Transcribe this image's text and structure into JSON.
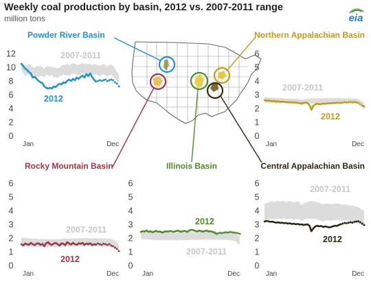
{
  "header": {
    "title": "Weekly coal production by basin, 2012 vs. 2007-2011  range",
    "subtitle": "million tons",
    "logo_text": "eia"
  },
  "colors": {
    "powder_river": "#1a94cf",
    "northern_appalachian": "#c89a13",
    "rocky_mountain": "#a63247",
    "illinois": "#4f8a2a",
    "central_appalachian": "#2e2812",
    "range_fill": "#dcdcdc",
    "range_label": "#c8c8c8"
  },
  "chart_data": [
    {
      "type": "area",
      "title": "Powder River Basin",
      "color": "#1a94cf",
      "yticks": [
        "0",
        "2",
        "4",
        "6",
        "8",
        "10",
        "12"
      ],
      "ylim": [
        0,
        12
      ],
      "xticks": [
        "Jan",
        "Dec"
      ],
      "range_label": "2007-2011",
      "year_label": "2012",
      "range_low": [
        9.6,
        9.2,
        8.7,
        8.9,
        9.0,
        8.6,
        8.3,
        8.4,
        8.6,
        8.5,
        8.8,
        8.7,
        8.5,
        8.9,
        8.8,
        8.7,
        8.9,
        8.5,
        8.6,
        8.4,
        8.8,
        8.7,
        9.0,
        8.8,
        8.9,
        8.7,
        9.0,
        9.1,
        9.0,
        8.9,
        8.8,
        8.9,
        9.2,
        8.9,
        9.1,
        8.8,
        9.0,
        8.8,
        8.9,
        9.0,
        8.8,
        8.7,
        8.9,
        9.0,
        8.8,
        8.6,
        8.8,
        8.9,
        8.7,
        8.3,
        8.0,
        7.8
      ],
      "range_high": [
        10.8,
        10.4,
        10.2,
        10.3,
        10.5,
        10.3,
        10.0,
        9.9,
        10.2,
        10.1,
        10.3,
        10.0,
        9.8,
        10.1,
        10.2,
        10.0,
        10.1,
        9.9,
        10.0,
        9.8,
        10.0,
        10.2,
        10.4,
        10.3,
        10.5,
        10.3,
        10.4,
        10.6,
        10.5,
        10.4,
        10.3,
        10.5,
        10.6,
        10.4,
        10.6,
        10.4,
        10.5,
        10.3,
        10.5,
        10.4,
        10.3,
        10.2,
        10.3,
        10.5,
        10.3,
        10.1,
        10.3,
        10.4,
        10.2,
        9.8,
        9.3,
        9.0
      ],
      "values_2012": [
        10.5,
        10.2,
        9.8,
        9.6,
        9.3,
        9.1,
        8.5,
        8.6,
        8.3,
        8.0,
        7.8,
        7.7,
        7.2,
        7.0,
        6.9,
        7.0,
        6.9,
        7.2,
        7.1,
        7.4,
        7.6,
        7.5,
        7.8,
        7.7,
        8.0,
        8.2,
        8.0,
        8.3,
        8.1,
        8.5,
        8.3,
        8.6,
        8.8,
        8.5,
        9.0,
        8.7,
        9.1,
        8.6,
        8.2,
        7.9
      ],
      "projected_2012": [
        7.9,
        8.0,
        8.1,
        8.0,
        8.1,
        8.2,
        8.0,
        8.1,
        8.2,
        8.1,
        7.8,
        7.6,
        7.2
      ]
    },
    {
      "type": "area",
      "title": "Northern Appalachian Basin",
      "color": "#c89a13",
      "yticks": [
        "0",
        "1",
        "2",
        "3",
        "4",
        "5",
        "6"
      ],
      "ylim": [
        0,
        6
      ],
      "xticks": [
        "Jan",
        "Dec"
      ],
      "range_label": "2007-2011",
      "year_label": "2012",
      "range_low": [
        2.45,
        2.45,
        2.4,
        2.42,
        2.4,
        2.38,
        2.36,
        2.38,
        2.4,
        2.38,
        2.36,
        2.38,
        2.35,
        2.36,
        2.34,
        2.36,
        2.35,
        2.34,
        2.36,
        2.2,
        2.3,
        2.34,
        2.35,
        2.36,
        2.35,
        2.36,
        2.38,
        2.37,
        2.36,
        2.38,
        2.36,
        2.38,
        2.4,
        2.38,
        2.4,
        2.38,
        2.39,
        2.38,
        2.4,
        2.38,
        2.37,
        2.38,
        2.36,
        2.38,
        2.36,
        2.34,
        2.35,
        2.33,
        2.3,
        2.2,
        2.05,
        1.95
      ],
      "range_high": [
        2.8,
        2.85,
        2.78,
        2.8,
        2.76,
        2.78,
        2.74,
        2.76,
        2.75,
        2.74,
        2.72,
        2.74,
        2.7,
        2.72,
        2.7,
        2.71,
        2.7,
        2.68,
        2.7,
        2.62,
        2.66,
        2.68,
        2.7,
        2.72,
        2.71,
        2.72,
        2.74,
        2.73,
        2.72,
        2.74,
        2.73,
        2.74,
        2.76,
        2.74,
        2.76,
        2.74,
        2.75,
        2.74,
        2.76,
        2.74,
        2.73,
        2.74,
        2.72,
        2.74,
        2.72,
        2.7,
        2.72,
        2.7,
        2.66,
        2.58,
        2.5,
        2.45
      ],
      "values_2012": [
        2.6,
        2.55,
        2.58,
        2.55,
        2.52,
        2.55,
        2.5,
        2.52,
        2.48,
        2.5,
        2.48,
        2.45,
        2.46,
        2.44,
        2.45,
        2.42,
        2.44,
        2.4,
        2.38,
        2.35,
        2.4,
        2.42,
        2.4,
        2.25,
        1.9,
        2.2,
        2.3,
        2.35,
        2.3,
        2.32,
        2.35,
        2.33,
        2.36,
        2.38,
        2.36,
        2.4,
        2.38,
        2.42,
        2.4,
        2.4
      ],
      "projected_2012": [
        2.4,
        2.42,
        2.45,
        2.43,
        2.45,
        2.47,
        2.45,
        2.47,
        2.45,
        2.4,
        2.3,
        2.2,
        2.15
      ]
    },
    {
      "type": "area",
      "title": "Rocky Mountain Basin",
      "color": "#a63247",
      "yticks": [
        "0",
        "1",
        "2",
        "3",
        "4",
        "5",
        "6"
      ],
      "ylim": [
        0,
        6
      ],
      "xticks": [
        "Jan",
        "Dec"
      ],
      "range_label": "2007-2011",
      "year_label": "2012",
      "range_low": [
        1.5,
        1.45,
        1.42,
        1.4,
        1.42,
        1.38,
        1.36,
        1.38,
        1.4,
        1.38,
        1.36,
        1.38,
        1.35,
        1.36,
        1.34,
        1.36,
        1.38,
        1.36,
        1.35,
        1.36,
        1.38,
        1.4,
        1.38,
        1.4,
        1.42,
        1.4,
        1.42,
        1.43,
        1.42,
        1.44,
        1.42,
        1.43,
        1.45,
        1.44,
        1.45,
        1.43,
        1.44,
        1.43,
        1.45,
        1.44,
        1.42,
        1.43,
        1.42,
        1.44,
        1.42,
        1.4,
        1.42,
        1.4,
        1.36,
        1.28,
        1.18,
        1.1
      ],
      "range_high": [
        2.0,
        2.05,
        1.98,
        2.0,
        1.96,
        1.98,
        1.94,
        1.96,
        1.95,
        1.94,
        1.92,
        1.94,
        1.9,
        1.92,
        1.9,
        1.91,
        1.92,
        1.9,
        1.92,
        1.9,
        1.92,
        1.94,
        1.95,
        1.96,
        1.95,
        1.96,
        1.98,
        1.97,
        1.96,
        1.98,
        1.97,
        1.98,
        2.0,
        1.98,
        2.0,
        1.98,
        1.99,
        1.98,
        2.0,
        1.98,
        1.97,
        1.98,
        1.96,
        1.98,
        1.96,
        1.94,
        1.96,
        1.94,
        1.88,
        1.78,
        1.65,
        1.55
      ],
      "values_2012": [
        1.55,
        1.45,
        1.6,
        1.55,
        1.5,
        1.65,
        1.55,
        1.48,
        1.6,
        1.62,
        1.5,
        1.58,
        1.4,
        1.62,
        1.7,
        1.55,
        1.5,
        1.6,
        1.65,
        1.55,
        1.45,
        1.62,
        1.58,
        1.48,
        1.7,
        1.6,
        1.52,
        1.65,
        1.55,
        1.5,
        1.62,
        1.58,
        1.65,
        1.5,
        1.6,
        1.55,
        1.62,
        1.48,
        1.55,
        1.52
      ],
      "projected_2012": [
        1.52,
        1.6,
        1.55,
        1.5,
        1.58,
        1.55,
        1.5,
        1.55,
        1.45,
        1.4,
        1.3,
        1.2,
        1.05
      ]
    },
    {
      "type": "area",
      "title": "Illinois Basin",
      "color": "#4f8a2a",
      "yticks": [
        "0",
        "1",
        "2",
        "3",
        "4",
        "5",
        "6"
      ],
      "ylim": [
        0,
        6
      ],
      "xticks": [
        "Jan",
        "Dec"
      ],
      "range_label": "2007-2011",
      "year_label": "2012",
      "range_low": [
        1.95,
        1.9,
        1.92,
        1.88,
        1.9,
        1.86,
        1.88,
        1.85,
        1.86,
        1.84,
        1.86,
        1.85,
        1.84,
        1.85,
        1.83,
        1.84,
        1.85,
        1.84,
        1.82,
        1.84,
        1.86,
        1.85,
        1.84,
        1.86,
        1.85,
        1.86,
        1.88,
        1.87,
        1.86,
        1.88,
        1.87,
        1.88,
        1.9,
        1.88,
        1.9,
        1.88,
        1.89,
        1.88,
        1.9,
        1.88,
        1.87,
        1.88,
        1.86,
        1.88,
        1.86,
        1.84,
        1.86,
        1.84,
        1.8,
        1.72,
        1.6,
        1.5
      ],
      "range_high": [
        2.55,
        2.5,
        2.48,
        2.45,
        2.47,
        2.44,
        2.45,
        2.43,
        2.44,
        2.42,
        2.44,
        2.43,
        2.42,
        2.43,
        2.41,
        2.42,
        2.43,
        2.42,
        2.4,
        2.42,
        2.44,
        2.43,
        2.42,
        2.44,
        2.43,
        2.44,
        2.46,
        2.45,
        2.44,
        2.46,
        2.45,
        2.46,
        2.48,
        2.46,
        2.48,
        2.46,
        2.47,
        2.46,
        2.48,
        2.46,
        2.45,
        2.46,
        2.44,
        2.46,
        2.44,
        2.42,
        2.44,
        2.42,
        2.38,
        2.3,
        2.2,
        2.1
      ],
      "values_2012": [
        2.45,
        2.5,
        2.48,
        2.55,
        2.45,
        2.5,
        2.42,
        2.48,
        2.52,
        2.45,
        2.48,
        2.4,
        2.45,
        2.5,
        2.46,
        2.52,
        2.48,
        2.45,
        2.5,
        2.55,
        2.48,
        2.46,
        2.52,
        2.5,
        2.45,
        2.55,
        2.6,
        2.58,
        2.52,
        2.48,
        2.55,
        2.5,
        2.46,
        2.52,
        2.55,
        2.48,
        2.5,
        2.45,
        2.4,
        2.3
      ],
      "projected_2012": [
        2.3,
        2.35,
        2.38,
        2.35,
        2.4,
        2.42,
        2.4,
        2.45,
        2.42,
        2.4,
        2.38,
        2.35,
        2.3
      ]
    },
    {
      "type": "area",
      "title": "Central Appalachian Basin",
      "color": "#2e2812",
      "yticks": [
        "0",
        "1",
        "2",
        "3",
        "4",
        "5",
        "6"
      ],
      "ylim": [
        0,
        6
      ],
      "xticks": [
        "Jan",
        "Dec"
      ],
      "range_label": "2007-2011",
      "year_label": "2012",
      "range_low": [
        3.3,
        3.35,
        3.32,
        3.38,
        3.4,
        3.35,
        3.38,
        3.42,
        3.4,
        3.38,
        3.42,
        3.4,
        3.38,
        3.42,
        3.4,
        3.36,
        3.38,
        3.4,
        3.35,
        3.2,
        3.3,
        3.36,
        3.38,
        3.4,
        3.42,
        3.4,
        3.38,
        3.36,
        3.3,
        3.25,
        3.2,
        3.25,
        3.28,
        3.3,
        3.25,
        3.3,
        3.28,
        3.32,
        3.3,
        3.28,
        3.25,
        3.3,
        3.28,
        3.25,
        3.22,
        3.2,
        3.18,
        3.15,
        3.1,
        3.0,
        2.9,
        2.85
      ],
      "range_high": [
        4.5,
        4.55,
        4.6,
        4.65,
        4.7,
        4.62,
        4.68,
        4.72,
        4.65,
        4.7,
        4.68,
        4.62,
        4.66,
        4.7,
        4.65,
        4.6,
        4.64,
        4.68,
        4.6,
        4.4,
        4.52,
        4.6,
        4.62,
        4.66,
        4.7,
        4.68,
        4.64,
        4.62,
        4.58,
        4.5,
        4.46,
        4.48,
        4.52,
        4.5,
        4.46,
        4.5,
        4.48,
        4.52,
        4.5,
        4.46,
        4.42,
        4.46,
        4.44,
        4.4,
        4.38,
        4.36,
        4.34,
        4.3,
        4.25,
        4.15,
        4.05,
        4.0
      ],
      "values_2012": [
        3.2,
        3.25,
        3.22,
        3.18,
        3.2,
        3.15,
        3.12,
        3.15,
        3.1,
        3.12,
        3.08,
        3.1,
        3.05,
        3.08,
        3.02,
        3.05,
        3.0,
        3.03,
        2.98,
        3.0,
        2.95,
        2.98,
        3.0,
        2.9,
        2.5,
        2.7,
        2.85,
        2.9,
        2.85,
        2.88,
        2.8,
        2.85,
        2.82,
        2.78,
        2.8,
        2.85,
        2.9,
        2.88,
        2.95,
        3.0
      ],
      "projected_2012": [
        3.0,
        3.05,
        3.1,
        3.08,
        3.12,
        3.15,
        3.12,
        3.18,
        3.2,
        3.22,
        3.15,
        3.05,
        2.95
      ]
    }
  ]
}
